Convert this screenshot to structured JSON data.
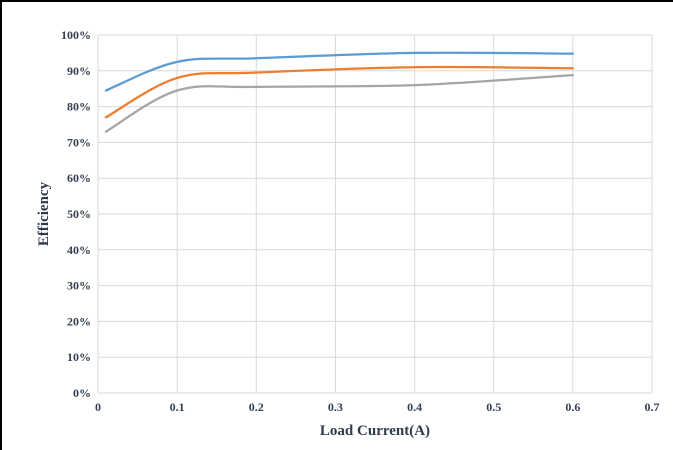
{
  "chart_data": {
    "type": "line",
    "title": "",
    "xlabel": "Load Current(A)",
    "ylabel": "Efficiency",
    "xlim": [
      0,
      0.7
    ],
    "ylim": [
      0,
      1.0
    ],
    "x_ticks": [
      "0",
      "0.1",
      "0.2",
      "0.3",
      "0.4",
      "0.5",
      "0.6",
      "0.7"
    ],
    "y_ticks": [
      "0%",
      "10%",
      "20%",
      "30%",
      "40%",
      "50%",
      "60%",
      "70%",
      "80%",
      "90%",
      "100%"
    ],
    "grid": true,
    "legend": "none",
    "series": [
      {
        "color": "#5b9bd5",
        "x": [
          0.01,
          0.1,
          0.2,
          0.4,
          0.6
        ],
        "y": [
          0.845,
          0.925,
          0.935,
          0.95,
          0.948
        ]
      },
      {
        "color": "#ed7d31",
        "x": [
          0.01,
          0.1,
          0.2,
          0.4,
          0.6
        ],
        "y": [
          0.77,
          0.88,
          0.895,
          0.91,
          0.907
        ]
      },
      {
        "color": "#a5a5a5",
        "x": [
          0.01,
          0.1,
          0.2,
          0.4,
          0.6
        ],
        "y": [
          0.73,
          0.845,
          0.855,
          0.86,
          0.888
        ]
      }
    ]
  }
}
